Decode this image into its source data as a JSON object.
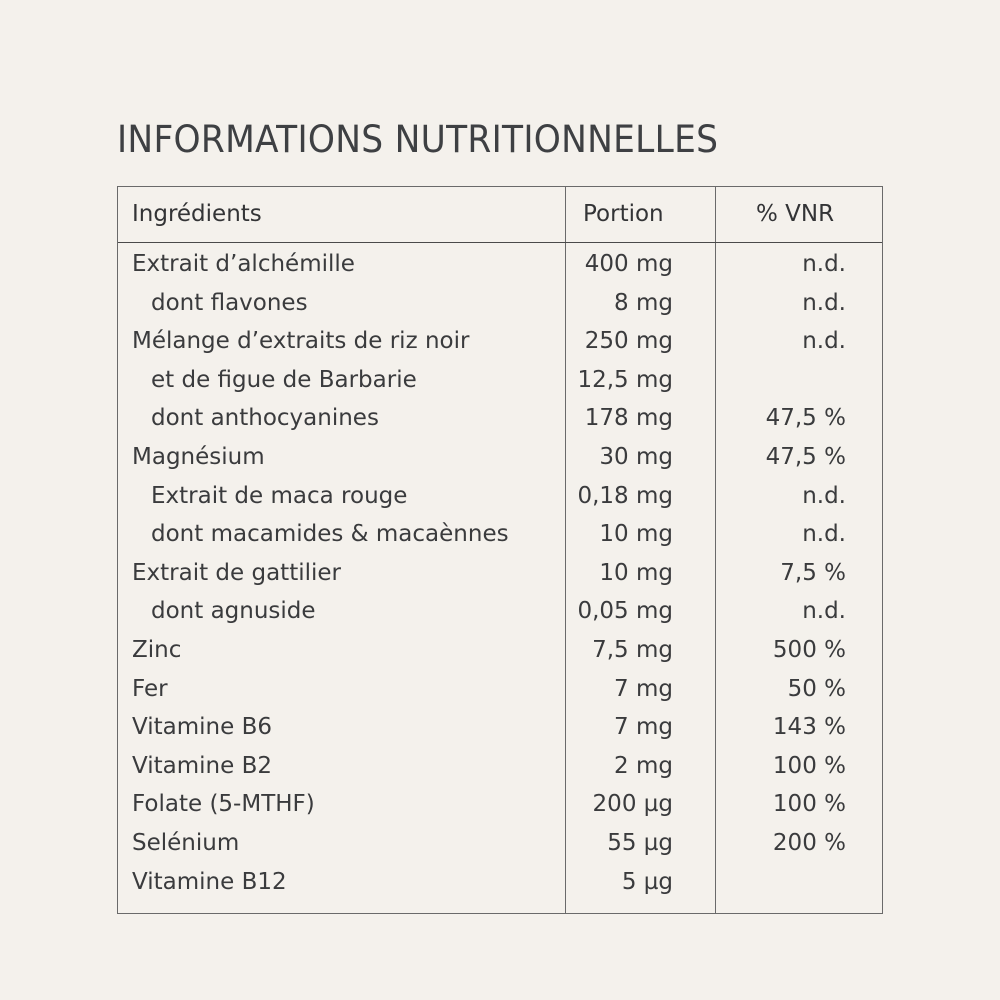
{
  "title": "INFORMATIONS NUTRITIONNELLES",
  "table": {
    "headers": {
      "ingredients": "Ingrédients",
      "portion": "Portion",
      "vnr": "% VNR"
    },
    "rows": [
      {
        "name": "Extrait d’alchémille",
        "portion": "400 mg",
        "vnr": "n.d.",
        "indent": false
      },
      {
        "name": "dont flavones",
        "portion": "8 mg",
        "vnr": "n.d.",
        "indent": true
      },
      {
        "name": "Mélange d’extraits de riz noir",
        "portion": "250 mg",
        "vnr": "n.d.",
        "indent": false
      },
      {
        "name": "et de figue de Barbarie",
        "portion": "12,5 mg",
        "vnr": "",
        "indent": true
      },
      {
        "name": "dont anthocyanines",
        "portion": "178 mg",
        "vnr": "47,5 %",
        "indent": true
      },
      {
        "name": "Magnésium",
        "portion": "30 mg",
        "vnr": "47,5 %",
        "indent": false
      },
      {
        "name": "Extrait de maca rouge",
        "portion": "0,18 mg",
        "vnr": "n.d.",
        "indent": true
      },
      {
        "name": "dont macamides & macaènnes",
        "portion": "10 mg",
        "vnr": "n.d.",
        "indent": true
      },
      {
        "name": "Extrait de gattilier",
        "portion": "10 mg",
        "vnr": "7,5 %",
        "indent": false
      },
      {
        "name": "dont agnuside",
        "portion": "0,05 mg",
        "vnr": "n.d.",
        "indent": true
      },
      {
        "name": "Zinc",
        "portion": "7,5 mg",
        "vnr": "500 %",
        "indent": false
      },
      {
        "name": "Fer",
        "portion": "7 mg",
        "vnr": "50 %",
        "indent": false
      },
      {
        "name": "Vitamine B6",
        "portion": "7 mg",
        "vnr": "143 %",
        "indent": false
      },
      {
        "name": "Vitamine B2",
        "portion": "2 mg",
        "vnr": "100 %",
        "indent": false
      },
      {
        "name": "Folate (5-MTHF)",
        "portion": "200 µg",
        "vnr": "100 %",
        "indent": false
      },
      {
        "name": "Selénium",
        "portion": "55 µg",
        "vnr": "200 %",
        "indent": false
      },
      {
        "name": "Vitamine B12",
        "portion": "5 µg",
        "vnr": "",
        "indent": false
      }
    ]
  },
  "colors": {
    "background": "#f4f1ec",
    "text": "#3a3b3d",
    "border": "#6a6a6a"
  }
}
